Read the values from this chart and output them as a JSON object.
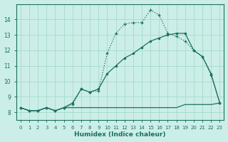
{
  "xlabel": "Humidex (Indice chaleur)",
  "background_color": "#cceee8",
  "grid_color": "#aaddcc",
  "line_color": "#1a7060",
  "xlim": [
    -0.5,
    23.5
  ],
  "ylim": [
    7.5,
    15.0
  ],
  "yticks": [
    8,
    9,
    10,
    11,
    12,
    13,
    14
  ],
  "xticks": [
    0,
    1,
    2,
    3,
    4,
    5,
    6,
    7,
    8,
    9,
    10,
    11,
    12,
    13,
    14,
    15,
    16,
    17,
    18,
    19,
    20,
    21,
    22,
    23
  ],
  "line_peaked_x": [
    0,
    1,
    2,
    3,
    4,
    5,
    6,
    7,
    8,
    9,
    10,
    11,
    12,
    13,
    14,
    15,
    16,
    17,
    18,
    19,
    20,
    21,
    22,
    23
  ],
  "line_peaked_y": [
    8.3,
    8.1,
    8.1,
    8.3,
    8.1,
    8.3,
    8.5,
    9.5,
    9.3,
    9.4,
    11.8,
    13.1,
    13.7,
    13.8,
    13.8,
    14.6,
    14.3,
    13.1,
    12.9,
    12.6,
    12.0,
    11.6,
    10.4,
    8.6
  ],
  "line_diag_x": [
    0,
    1,
    2,
    3,
    4,
    5,
    6,
    7,
    8,
    9,
    10,
    11,
    12,
    13,
    14,
    15,
    16,
    17,
    18,
    19,
    20,
    21,
    22,
    23
  ],
  "line_diag_y": [
    8.3,
    8.1,
    8.1,
    8.3,
    8.1,
    8.3,
    8.6,
    9.5,
    9.3,
    9.5,
    10.5,
    11.0,
    11.5,
    11.8,
    12.2,
    12.6,
    12.8,
    13.0,
    13.1,
    13.1,
    12.0,
    11.6,
    10.5,
    8.6
  ],
  "line_flat_x": [
    0,
    1,
    2,
    3,
    4,
    5,
    6,
    7,
    8,
    9,
    10,
    11,
    12,
    13,
    14,
    15,
    16,
    17,
    18,
    19,
    20,
    21,
    22,
    23
  ],
  "line_flat_y": [
    8.3,
    8.1,
    8.1,
    8.3,
    8.1,
    8.3,
    8.3,
    8.3,
    8.3,
    8.3,
    8.3,
    8.3,
    8.3,
    8.3,
    8.3,
    8.3,
    8.3,
    8.3,
    8.3,
    8.5,
    8.5,
    8.5,
    8.5,
    8.6
  ]
}
